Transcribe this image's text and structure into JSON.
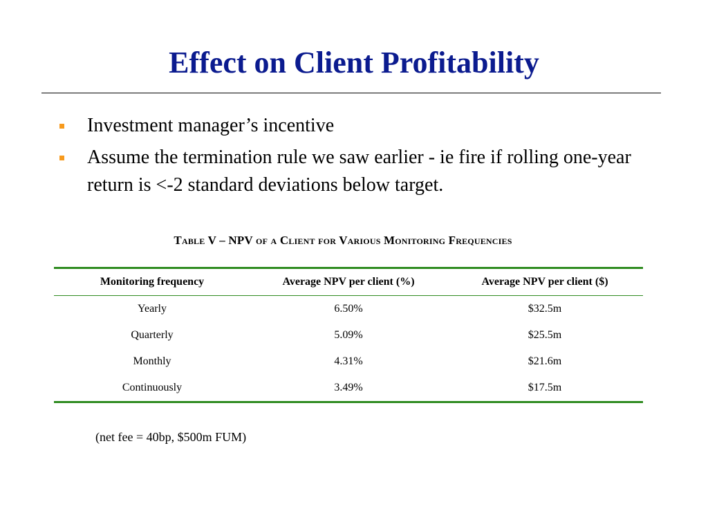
{
  "slide": {
    "title": "Effect on Client Profitability",
    "bullets": [
      "Investment manager’s incentive",
      "Assume the termination rule we saw earlier - ie fire if  rolling one-year return is <-2 standard deviations below target."
    ],
    "bullet_color": "#f79a1d",
    "title_color": "#0b1b8f"
  },
  "table": {
    "caption": "Table V – NPV of a Client for Various Monitoring Frequencies",
    "rule_color": "#2e8b1f",
    "headers": [
      "Monitoring frequency",
      "Average NPV per client (%)",
      "Average NPV per client ($)"
    ],
    "rows": [
      [
        "Yearly",
        "6.50%",
        "$32.5m"
      ],
      [
        "Quarterly",
        "5.09%",
        "$25.5m"
      ],
      [
        "Monthly",
        "4.31%",
        "$21.6m"
      ],
      [
        "Continuously",
        "3.49%",
        "$17.5m"
      ]
    ]
  },
  "footnote": "(net fee = 40bp, $500m FUM)"
}
